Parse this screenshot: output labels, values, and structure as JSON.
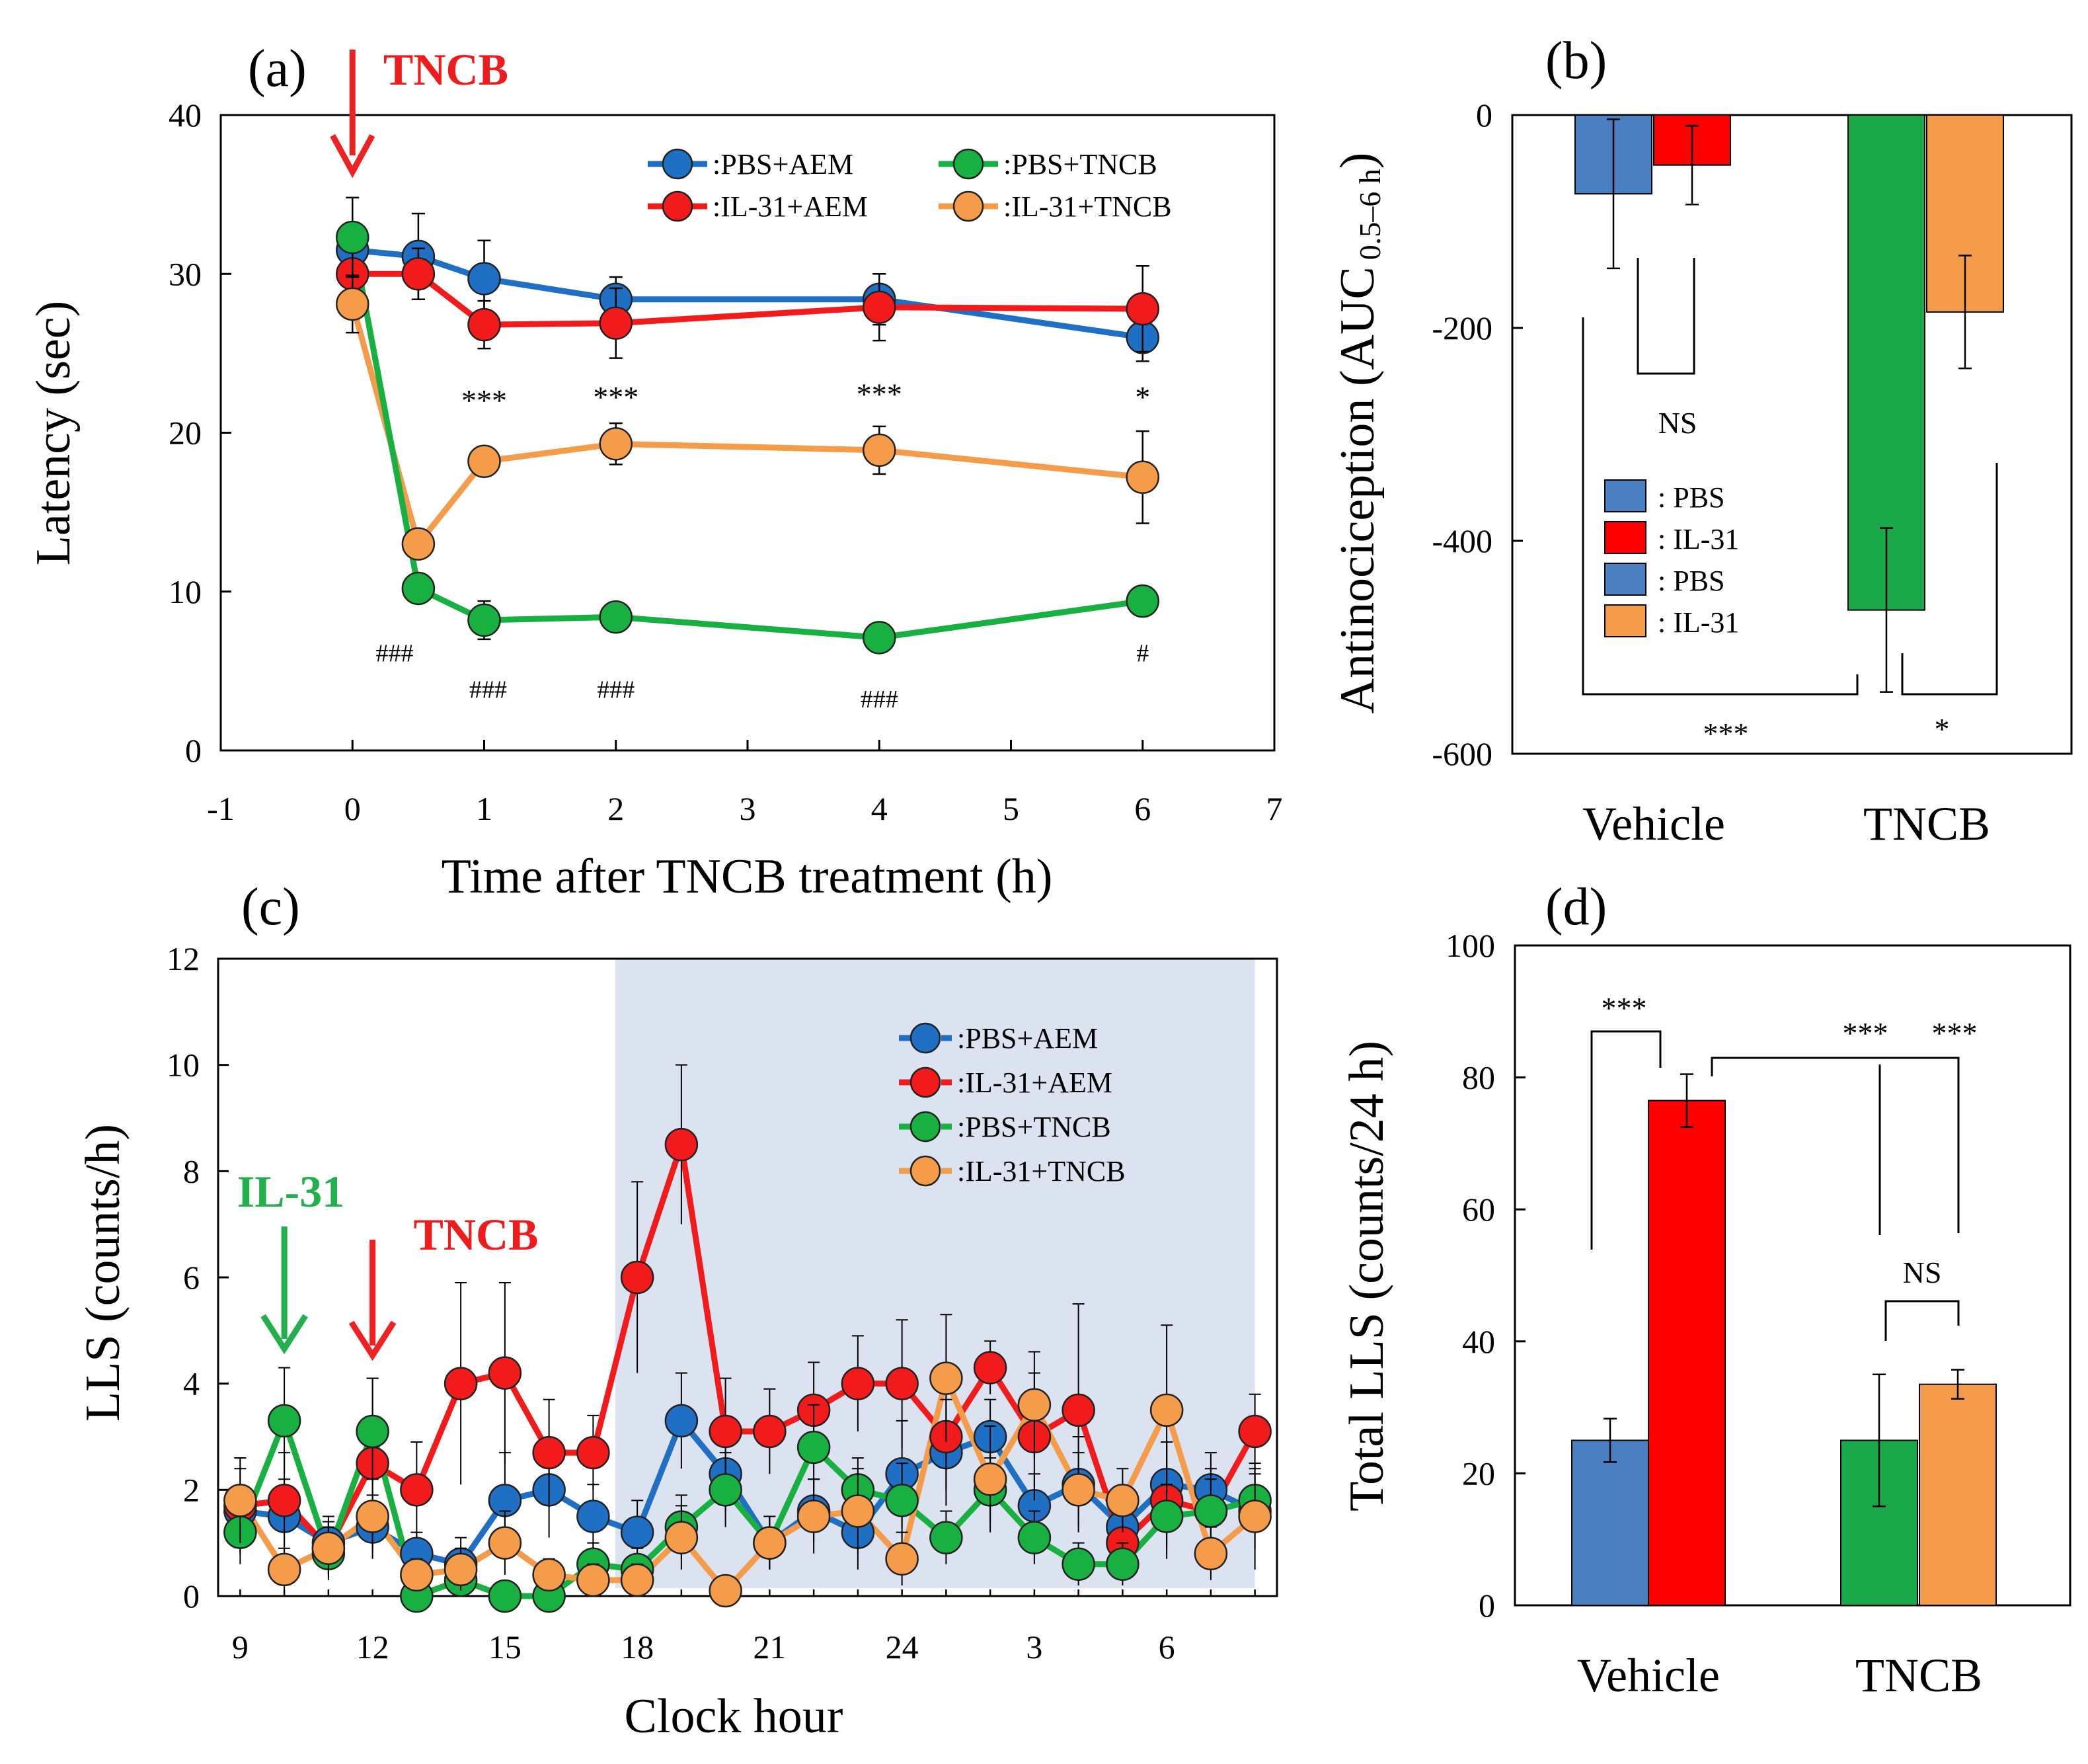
{
  "colors": {
    "pbs_aem": "#1f6fc5",
    "il31_aem": "#f21b1b",
    "pbs_tncb": "#18b040",
    "il31_tncb": "#f59c4a",
    "bar_blue": "#4a7fc1",
    "bar_red": "#ff0000",
    "bar_green": "#1aa84a",
    "bar_orange": "#f59c4a",
    "dark_shade": "#dbe3f0",
    "arrow_red": "#ee2222",
    "arrow_green": "#22b04c",
    "label_red": "#ee1c1c",
    "label_green": "#22b04c"
  },
  "chart_data": [
    {
      "panel": "a",
      "type": "line",
      "panel_label": "(a)",
      "xlabel": "Time after  TNCB treatment (h)",
      "ylabel": "Latency (sec)",
      "xlim": [
        -1,
        7
      ],
      "ylim": [
        0,
        40
      ],
      "xticks": [
        "-1",
        "0",
        "1",
        "2",
        "3",
        "4",
        "5",
        "6",
        "7"
      ],
      "yticks": [
        "0",
        "10",
        "20",
        "30",
        "40"
      ],
      "arrow_label": "TNCB",
      "arrow_x": 0,
      "legend": [
        {
          "label": ":PBS+AEM",
          "color_key": "pbs_aem"
        },
        {
          "label": ":IL-31+AEM",
          "color_key": "il31_aem"
        },
        {
          "label": ":PBS+TNCB",
          "color_key": "pbs_tncb"
        },
        {
          "label": ":IL-31+TNCB",
          "color_key": "il31_tncb"
        }
      ],
      "x": [
        0,
        0.5,
        1,
        2,
        4,
        6
      ],
      "series": [
        {
          "name": "PBS+AEM",
          "color_key": "pbs_aem",
          "values": [
            31.5,
            31.1,
            29.7,
            28.4,
            28.4,
            26.0
          ],
          "err": [
            1.5,
            2.7,
            2.4,
            1.4,
            1.6,
            1.5
          ]
        },
        {
          "name": "IL-31+AEM",
          "color_key": "il31_aem",
          "values": [
            30.0,
            30.0,
            26.8,
            26.9,
            27.9,
            27.8
          ],
          "err": [
            1.4,
            1.6,
            1.5,
            2.2,
            2.1,
            2.7
          ]
        },
        {
          "name": "IL-31+TNCB",
          "color_key": "il31_tncb",
          "values": [
            28.1,
            13.0,
            18.2,
            19.3,
            18.9,
            17.2
          ],
          "err": [
            1.8,
            0.9,
            0.8,
            1.3,
            1.5,
            2.9
          ]
        },
        {
          "name": "PBS+TNCB",
          "color_key": "pbs_tncb",
          "values": [
            32.3,
            10.2,
            8.2,
            8.4,
            7.1,
            9.4
          ],
          "err": [
            2.5,
            0.8,
            1.2,
            0.7,
            0.7,
            0.8
          ]
        }
      ],
      "annotations": [
        {
          "text": "***",
          "x": 1,
          "y": 21.4,
          "cls": "sig"
        },
        {
          "text": "***",
          "x": 2,
          "y": 21.6,
          "cls": "sig"
        },
        {
          "text": "***",
          "x": 4,
          "y": 21.8,
          "cls": "sig"
        },
        {
          "text": "*",
          "x": 6,
          "y": 21.6,
          "cls": "sig"
        },
        {
          "text": "###",
          "x": 0.32,
          "y": 5.6,
          "cls": "sigs"
        },
        {
          "text": "###",
          "x": 1.03,
          "y": 3.3,
          "cls": "sigs"
        },
        {
          "text": "###",
          "x": 2.0,
          "y": 3.3,
          "cls": "sigs"
        },
        {
          "text": "###",
          "x": 4.0,
          "y": 2.7,
          "cls": "sigs"
        },
        {
          "text": "#",
          "x": 6.0,
          "y": 5.6,
          "cls": "sigs"
        }
      ]
    },
    {
      "panel": "b",
      "type": "bar",
      "panel_label": "(b)",
      "ylabel": "Antinociception (AUC",
      "ylabel_sub": "0.5–6 h",
      "ylabel_close": ")",
      "categories": [
        "Vehicle",
        "TNCB"
      ],
      "ylim": [
        -600,
        0
      ],
      "yticks": [
        "-600",
        "-400",
        "-200",
        "0"
      ],
      "legend": [
        {
          "label": ": PBS",
          "color_key": "bar_blue"
        },
        {
          "label": ": IL-31",
          "color_key": "bar_red"
        },
        {
          "label": ": PBS",
          "color_key": "bar_blue"
        },
        {
          "label": ": IL-31",
          "color_key": "bar_orange"
        }
      ],
      "bars": [
        {
          "group": "Vehicle",
          "name": "PBS",
          "color_key": "bar_blue",
          "value": -74,
          "err": 70
        },
        {
          "group": "Vehicle",
          "name": "IL-31",
          "color_key": "bar_red",
          "value": -47,
          "err": 37
        },
        {
          "group": "TNCB",
          "name": "PBS",
          "color_key": "bar_green",
          "value": -465,
          "err": 77
        },
        {
          "group": "TNCB",
          "name": "IL-31",
          "color_key": "bar_orange",
          "value": -185,
          "err": 53
        }
      ],
      "significance": [
        {
          "text": "NS",
          "between": "Vehicle PBS vs Vehicle IL-31"
        },
        {
          "text": "***",
          "between": "Vehicle vs TNCB"
        },
        {
          "text": "*",
          "between": "TNCB PBS vs TNCB IL-31"
        }
      ]
    },
    {
      "panel": "c",
      "type": "line",
      "panel_label": "(c)",
      "xlabel": "Clock hour",
      "ylabel": "LLS (counts/h)",
      "xlim": [
        8.5,
        32.5
      ],
      "ylim": [
        0,
        12
      ],
      "xticks": [
        {
          "v": 9,
          "l": "9"
        },
        {
          "v": 12,
          "l": "12"
        },
        {
          "v": 15,
          "l": "15"
        },
        {
          "v": 18,
          "l": "18"
        },
        {
          "v": 21,
          "l": "21"
        },
        {
          "v": 24,
          "l": "24"
        },
        {
          "v": 27,
          "l": "3"
        },
        {
          "v": 30,
          "l": "6"
        }
      ],
      "yticks": [
        "0",
        "2",
        "4",
        "6",
        "8",
        "10",
        "12"
      ],
      "dark_period": [
        17.5,
        32
      ],
      "arrows": [
        {
          "label": "IL-31",
          "x": 10,
          "color_key": "arrow_green",
          "label_color_key": "label_green"
        },
        {
          "label": "TNCB",
          "x": 12,
          "color_key": "arrow_red",
          "label_color_key": "label_red"
        }
      ],
      "legend": [
        {
          "label": ":PBS+AEM",
          "color_key": "pbs_aem"
        },
        {
          "label": ":IL-31+AEM",
          "color_key": "il31_aem"
        },
        {
          "label": ":PBS+TNCB",
          "color_key": "pbs_tncb"
        },
        {
          "label": ":IL-31+TNCB",
          "color_key": "il31_tncb"
        }
      ],
      "x": [
        9,
        10,
        11,
        12,
        13,
        14,
        15,
        16,
        17,
        18,
        19,
        20,
        21,
        22,
        23,
        24,
        25,
        26,
        27,
        28,
        29,
        30,
        31,
        32
      ],
      "series": [
        {
          "name": "PBS+AEM",
          "color_key": "pbs_aem",
          "values": [
            1.6,
            1.5,
            1.0,
            1.3,
            0.8,
            0.6,
            1.8,
            2.0,
            1.5,
            1.2,
            3.3,
            2.3,
            1.0,
            1.6,
            1.2,
            2.3,
            2.7,
            3.0,
            1.7,
            2.1,
            1.3,
            2.1,
            2.0,
            1.6
          ],
          "err": [
            0.8,
            0.7,
            0.5,
            0.6,
            0.4,
            0.5,
            0.9,
            0.9,
            0.6,
            0.6,
            0.9,
            0.7,
            0.5,
            0.6,
            0.7,
            1.0,
            1.0,
            0.7,
            0.6,
            0.9,
            0.7,
            0.8,
            0.7,
            0.7
          ]
        },
        {
          "name": "IL-31+AEM",
          "color_key": "il31_aem",
          "values": [
            1.7,
            1.8,
            0.9,
            2.5,
            2.0,
            4.0,
            4.2,
            2.7,
            2.7,
            6.0,
            8.5,
            3.1,
            3.1,
            3.5,
            4.0,
            4.0,
            3.0,
            4.3,
            3.0,
            3.5,
            1.0,
            1.8,
            1.6,
            3.1
          ],
          "err": [
            0.9,
            0.9,
            0.5,
            1.6,
            0.9,
            1.9,
            1.7,
            1.0,
            0.7,
            1.8,
            1.5,
            1.0,
            0.8,
            0.9,
            0.9,
            1.2,
            1.0,
            0.5,
            1.2,
            2.0,
            0.7,
            1.1,
            0.8,
            0.7
          ]
        },
        {
          "name": "PBS+TNCB",
          "color_key": "pbs_tncb",
          "values": [
            1.2,
            3.3,
            0.8,
            3.1,
            0.0,
            0.3,
            0.0,
            0.0,
            0.6,
            0.5,
            1.3,
            2.0,
            1.0,
            2.8,
            2.0,
            1.8,
            1.1,
            2.0,
            1.1,
            0.6,
            0.6,
            1.5,
            1.6,
            1.8
          ],
          "err": [
            0.6,
            1.0,
            0.5,
            1.0,
            0.2,
            0.3,
            0.2,
            0.2,
            0.4,
            0.4,
            0.6,
            0.7,
            0.5,
            0.8,
            0.6,
            0.7,
            0.5,
            0.6,
            0.5,
            0.4,
            0.4,
            0.6,
            0.6,
            0.6
          ]
        },
        {
          "name": "IL-31+TNCB",
          "color_key": "il31_tncb",
          "values": [
            1.8,
            0.5,
            0.9,
            1.5,
            0.4,
            0.5,
            1.0,
            0.4,
            0.3,
            0.3,
            1.1,
            0.1,
            1.0,
            1.5,
            1.6,
            0.7,
            4.1,
            2.2,
            3.6,
            2.0,
            1.8,
            3.5,
            0.8,
            1.5
          ],
          "err": [
            0.8,
            0.4,
            0.5,
            0.7,
            0.3,
            0.4,
            0.6,
            0.3,
            0.3,
            0.3,
            0.6,
            0.2,
            0.5,
            0.7,
            0.8,
            0.5,
            1.2,
            1.0,
            1.0,
            0.7,
            0.6,
            1.6,
            0.5,
            1.0
          ]
        }
      ]
    },
    {
      "panel": "d",
      "type": "bar",
      "panel_label": "(d)",
      "ylabel": "Total LLS (counts/24 h)",
      "categories": [
        "Vehicle",
        "TNCB"
      ],
      "ylim": [
        0,
        100
      ],
      "yticks": [
        "0",
        "20",
        "40",
        "60",
        "80",
        "100"
      ],
      "bars": [
        {
          "group": "Vehicle",
          "name": "PBS+AEM",
          "color_key": "bar_blue",
          "value": 25,
          "err": 3.3
        },
        {
          "group": "Vehicle",
          "name": "IL-31+AEM",
          "color_key": "bar_red",
          "value": 76.5,
          "err": 4.0
        },
        {
          "group": "TNCB",
          "name": "PBS+TNCB",
          "color_key": "bar_green",
          "value": 25,
          "err": 10
        },
        {
          "group": "TNCB",
          "name": "IL-31+TNCB",
          "color_key": "bar_orange",
          "value": 33.5,
          "err": 2.2
        }
      ],
      "significance": [
        {
          "text": "***",
          "between": "Vehicle PBS vs Vehicle IL-31"
        },
        {
          "text": "***",
          "between": "Vehicle IL-31 vs TNCB PBS"
        },
        {
          "text": "***",
          "between": "Vehicle IL-31 vs TNCB IL-31"
        },
        {
          "text": "NS",
          "between": "TNCB PBS vs TNCB IL-31"
        }
      ]
    }
  ]
}
